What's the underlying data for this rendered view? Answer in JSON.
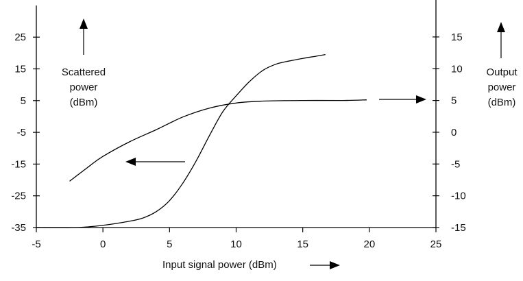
{
  "chart_data": {
    "type": "line",
    "title": "",
    "xlabel": "Input signal power (dBm)",
    "x_range": [
      -5,
      25
    ],
    "x_ticks": [
      -5,
      0,
      5,
      10,
      15,
      20,
      25
    ],
    "left_axis": {
      "label_lines": [
        "Scattered",
        "power",
        "(dBm)"
      ],
      "range": [
        -35,
        35
      ],
      "ticks": [
        -35,
        -25,
        -15,
        -5,
        5,
        15,
        25
      ]
    },
    "right_axis": {
      "label_lines": [
        "Output",
        "power",
        "(dBm)"
      ],
      "range": [
        -15,
        20
      ],
      "ticks": [
        -15,
        -10,
        -5,
        0,
        5,
        10,
        15
      ]
    },
    "grid": false,
    "series": [
      {
        "axis": "left",
        "points": [
          [
            -5,
            -35
          ],
          [
            -2,
            -35
          ],
          [
            0,
            -34.3
          ],
          [
            2,
            -33
          ],
          [
            3,
            -32
          ],
          [
            4,
            -30
          ],
          [
            5,
            -26.5
          ],
          [
            6,
            -21
          ],
          [
            7,
            -14
          ],
          [
            8,
            -6
          ],
          [
            9,
            1.5
          ],
          [
            10,
            6.5
          ],
          [
            11,
            11
          ],
          [
            12,
            14.5
          ],
          [
            13,
            16.5
          ],
          [
            14,
            17.5
          ],
          [
            15,
            18.3
          ],
          [
            16,
            19
          ],
          [
            16.7,
            19.5
          ]
        ]
      },
      {
        "axis": "right",
        "points": [
          [
            -2.5,
            -7.7
          ],
          [
            -1,
            -5.3
          ],
          [
            0,
            -3.8
          ],
          [
            2,
            -1.5
          ],
          [
            4,
            0.4
          ],
          [
            6,
            2.4
          ],
          [
            8,
            3.8
          ],
          [
            10,
            4.6
          ],
          [
            12,
            4.9
          ],
          [
            15,
            5
          ],
          [
            18,
            5
          ],
          [
            19.8,
            5.1
          ]
        ]
      }
    ]
  }
}
